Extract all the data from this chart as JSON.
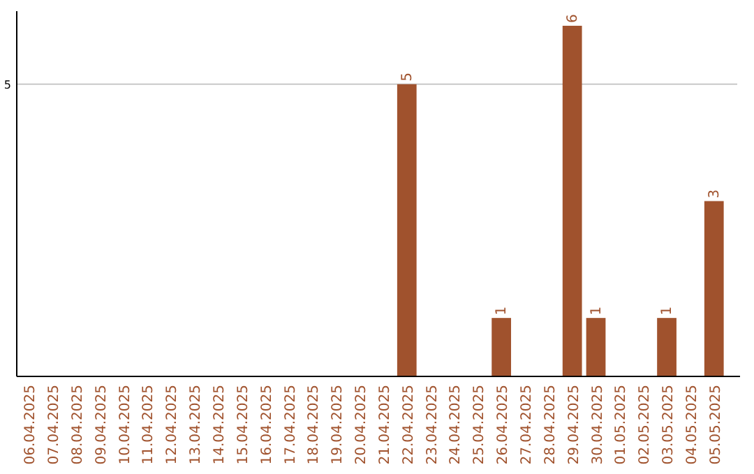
{
  "chart_data": {
    "type": "bar",
    "categories": [
      "06.04.2025",
      "07.04.2025",
      "08.04.2025",
      "09.04.2025",
      "10.04.2025",
      "11.04.2025",
      "12.04.2025",
      "13.04.2025",
      "14.04.2025",
      "15.04.2025",
      "16.04.2025",
      "17.04.2025",
      "18.04.2025",
      "19.04.2025",
      "20.04.2025",
      "21.04.2025",
      "22.04.2025",
      "23.04.2025",
      "24.04.2025",
      "25.04.2025",
      "26.04.2025",
      "27.04.2025",
      "28.04.2025",
      "29.04.2025",
      "30.04.2025",
      "01.05.2025",
      "02.05.2025",
      "03.05.2025",
      "04.05.2025",
      "05.05.2025"
    ],
    "values": [
      null,
      null,
      null,
      null,
      null,
      null,
      null,
      null,
      null,
      null,
      null,
      null,
      null,
      null,
      null,
      null,
      5,
      null,
      null,
      null,
      1,
      null,
      null,
      6,
      1,
      null,
      null,
      1,
      null,
      3
    ],
    "value_labels": [
      null,
      null,
      null,
      null,
      null,
      null,
      null,
      null,
      null,
      null,
      null,
      null,
      null,
      null,
      null,
      null,
      "5",
      null,
      null,
      null,
      "1",
      null,
      null,
      "6",
      "1",
      null,
      null,
      "1",
      null,
      "3"
    ],
    "color": "#a0522d",
    "ylim": [
      0,
      6.25
    ],
    "ref_lines": [
      {
        "axis": "y",
        "value": 5,
        "label": "5",
        "color": "#c8c8c8"
      }
    ]
  }
}
